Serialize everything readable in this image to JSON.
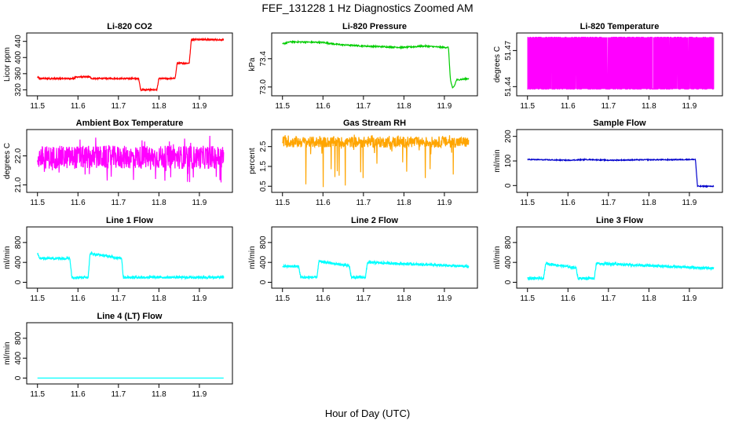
{
  "figure": {
    "title": "FEF_131228  1 Hz Diagnostics Zoomed AM",
    "xlabel": "Hour of Day (UTC)"
  },
  "chart_data": [
    {
      "type": "line",
      "title": "Li-820 CO2",
      "ylabel": "Licor ppm",
      "color": "#ff0000",
      "xlim": [
        11.485,
        11.97
      ],
      "ylim": [
        313,
        453
      ],
      "xticks": [
        "11.5",
        "11.6",
        "11.7",
        "11.8",
        "11.9"
      ],
      "yticks": [
        320,
        360,
        400,
        440
      ],
      "style": "step",
      "x": [
        11.5,
        11.505,
        11.59,
        11.595,
        11.63,
        11.633,
        11.75,
        11.755,
        11.795,
        11.8,
        11.84,
        11.845,
        11.875,
        11.88,
        11.96
      ],
      "y": [
        352,
        348,
        348,
        352,
        352,
        348,
        348,
        320,
        320,
        348,
        348,
        386,
        386,
        445,
        444
      ],
      "noise": 1.5
    },
    {
      "type": "line",
      "title": "Li-820 Pressure",
      "ylabel": "kPa",
      "color": "#00cc00",
      "xlim": [
        11.485,
        11.97
      ],
      "ylim": [
        72.92,
        73.72
      ],
      "xticks": [
        "11.5",
        "11.6",
        "11.7",
        "11.8",
        "11.9"
      ],
      "yticks": [
        "73.0",
        "73.4"
      ],
      "style": "line",
      "x": [
        11.5,
        11.52,
        11.6,
        11.64,
        11.7,
        11.75,
        11.8,
        11.85,
        11.9,
        11.91,
        11.915,
        11.92,
        11.925,
        11.93,
        11.96
      ],
      "y": [
        73.61,
        73.64,
        73.63,
        73.6,
        73.58,
        73.57,
        73.56,
        73.58,
        73.56,
        73.56,
        73.1,
        72.98,
        73.02,
        73.1,
        73.12
      ],
      "noise": 0.01
    },
    {
      "type": "line",
      "title": "Li-820 Temperature",
      "ylabel": "degrees C",
      "color": "#ff00ff",
      "xlim": [
        11.485,
        11.97
      ],
      "ylim": [
        51.435,
        51.482
      ],
      "xticks": [
        "11.5",
        "11.6",
        "11.7",
        "11.8",
        "11.9"
      ],
      "yticks": [
        "51.44",
        "51.47"
      ],
      "style": "toggle",
      "levels": [
        51.438,
        51.481
      ],
      "x": [
        11.5,
        11.96
      ]
    },
    {
      "type": "line",
      "title": "Ambient Box Temperature",
      "ylabel": "degrees C",
      "color": "#ff00ff",
      "xlim": [
        11.485,
        11.97
      ],
      "ylim": [
        20.85,
        22.8
      ],
      "xticks": [
        "11.5",
        "11.6",
        "11.7",
        "11.8",
        "11.9"
      ],
      "yticks": [
        "21.0",
        "22.0"
      ],
      "style": "band",
      "x": [
        11.5,
        11.96
      ],
      "y": [
        21.8,
        21.8
      ],
      "band": [
        21.55,
        22.35
      ],
      "spikes_low": 21.0,
      "spikes_high": 22.7
    },
    {
      "type": "line",
      "title": "Gas Stream RH",
      "ylabel": "percent",
      "color": "#ffa500",
      "xlim": [
        11.485,
        11.97
      ],
      "ylim": [
        0.35,
        3.2
      ],
      "xticks": [
        "11.5",
        "11.6",
        "11.7",
        "11.8",
        "11.9"
      ],
      "yticks": [
        "0.5",
        "1.5",
        "2.5"
      ],
      "style": "band",
      "x": [
        11.5,
        11.96
      ],
      "y": [
        2.75,
        2.75
      ],
      "band": [
        2.45,
        3.0
      ],
      "spikes_low": 0.45,
      "spikes_high": 3.1
    },
    {
      "type": "line",
      "title": "Sample Flow",
      "ylabel": "ml/min",
      "color": "#0000cc",
      "xlim": [
        11.485,
        11.97
      ],
      "ylim": [
        -15,
        215
      ],
      "xticks": [
        "11.5",
        "11.6",
        "11.7",
        "11.8",
        "11.9"
      ],
      "yticks": [
        0,
        100,
        200
      ],
      "style": "line",
      "x": [
        11.5,
        11.6,
        11.65,
        11.7,
        11.75,
        11.8,
        11.85,
        11.9,
        11.915,
        11.92,
        11.96
      ],
      "y": [
        106,
        103,
        106,
        103,
        104,
        105,
        105,
        106,
        106,
        -3,
        -3
      ],
      "noise": 2
    },
    {
      "type": "line",
      "title": "Line 1 Flow",
      "ylabel": "ml/min",
      "color": "#00ffff",
      "xlim": [
        11.485,
        11.97
      ],
      "ylim": [
        -55,
        1050
      ],
      "xticks": [
        "11.5",
        "11.6",
        "11.7",
        "11.8",
        "11.9"
      ],
      "yticks": [
        0,
        400,
        800
      ],
      "style": "step",
      "x": [
        11.5,
        11.505,
        11.58,
        11.585,
        11.625,
        11.63,
        11.708,
        11.712,
        11.96
      ],
      "y": [
        570,
        480,
        480,
        100,
        100,
        580,
        480,
        100,
        100
      ],
      "noise": 25
    },
    {
      "type": "line",
      "title": "Line 2 Flow",
      "ylabel": "ml/min",
      "color": "#00ffff",
      "xlim": [
        11.485,
        11.97
      ],
      "ylim": [
        -55,
        1050
      ],
      "xticks": [
        "11.5",
        "11.6",
        "11.7",
        "11.8",
        "11.9"
      ],
      "yticks": [
        0,
        400,
        800
      ],
      "style": "step",
      "x": [
        11.5,
        11.54,
        11.545,
        11.585,
        11.59,
        11.665,
        11.67,
        11.705,
        11.71,
        11.96
      ],
      "y": [
        320,
        320,
        100,
        100,
        420,
        330,
        100,
        100,
        400,
        320
      ],
      "noise": 25
    },
    {
      "type": "line",
      "title": "Line 3 Flow",
      "ylabel": "ml/min",
      "color": "#00ffff",
      "xlim": [
        11.485,
        11.97
      ],
      "ylim": [
        -55,
        1050
      ],
      "xticks": [
        "11.5",
        "11.6",
        "11.7",
        "11.8",
        "11.9"
      ],
      "yticks": [
        0,
        400,
        800
      ],
      "style": "step",
      "x": [
        11.5,
        11.54,
        11.545,
        11.62,
        11.625,
        11.665,
        11.67,
        11.96
      ],
      "y": [
        80,
        80,
        380,
        290,
        80,
        80,
        380,
        280
      ],
      "noise": 25
    },
    {
      "type": "line",
      "title": "Line 4 (LT) Flow",
      "ylabel": "ml/min",
      "color": "#00ffff",
      "xlim": [
        11.485,
        11.97
      ],
      "ylim": [
        -55,
        1050
      ],
      "xticks": [
        "11.5",
        "11.6",
        "11.7",
        "11.8",
        "11.9"
      ],
      "yticks": [
        0,
        400,
        800
      ],
      "style": "line",
      "x": [
        11.5,
        11.96
      ],
      "y": [
        1,
        1
      ],
      "noise": 0
    }
  ]
}
